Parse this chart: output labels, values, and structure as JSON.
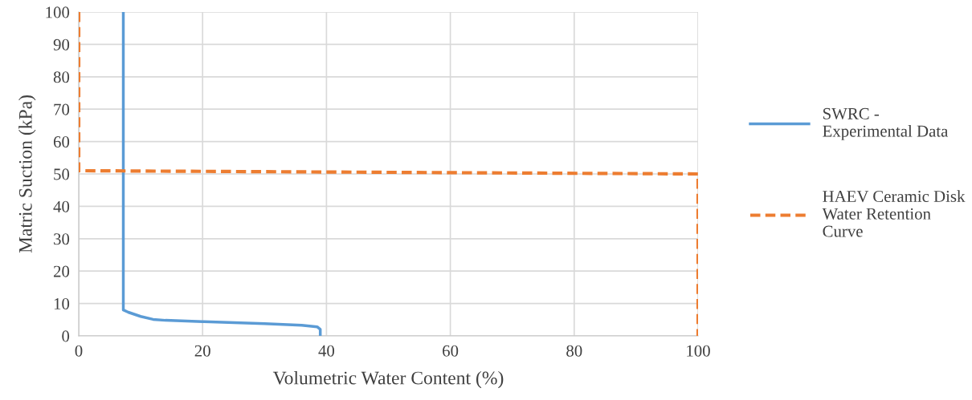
{
  "chart_data": {
    "type": "line",
    "xlabel": "Volumetric Water Content (%)",
    "ylabel": "Matric Suction (kPa)",
    "xlim": [
      0,
      100
    ],
    "xticks": [
      0,
      20,
      40,
      60,
      80,
      100
    ],
    "ylim": [
      0,
      100
    ],
    "yticks": [
      0,
      10,
      20,
      30,
      40,
      50,
      60,
      70,
      80,
      90,
      100
    ],
    "grid": true,
    "legend": "right",
    "marker": "none",
    "series": [
      {
        "name": "SWRC - Experimental Data",
        "color": "#5b9bd5",
        "line_style": "solid",
        "x": [
          7.2,
          7.2,
          8.0,
          10.0,
          12.0,
          14.0,
          20.0,
          30.0,
          36.0,
          38.5,
          39.0,
          39.0
        ],
        "values": [
          100,
          8,
          7.3,
          6.0,
          5.1,
          4.8,
          4.4,
          3.8,
          3.3,
          2.8,
          2.0,
          0
        ]
      },
      {
        "name": "HAEV Ceramic Disk Water Retention Curve",
        "color": "#ed7d31",
        "line_style": "dashed",
        "x": [
          0,
          0,
          100,
          100
        ],
        "values": [
          100,
          51,
          50,
          0
        ]
      }
    ]
  }
}
